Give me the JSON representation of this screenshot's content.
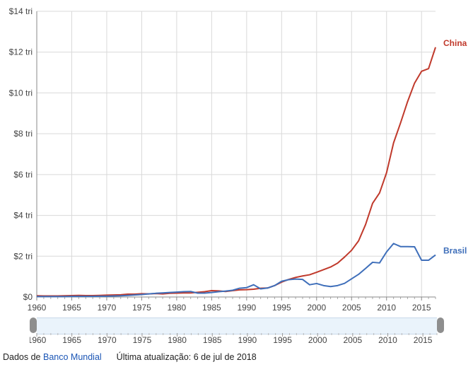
{
  "chart_data": {
    "type": "line",
    "title": "",
    "xlabel": "",
    "ylabel": "",
    "xlim": [
      1960,
      2017
    ],
    "ylim": [
      0,
      14
    ],
    "y_ticks": [
      0,
      2,
      4,
      6,
      8,
      10,
      12,
      14
    ],
    "y_tick_labels": [
      "$0",
      "$2 tri",
      "$4 tri",
      "$6 tri",
      "$8 tri",
      "$10 tri",
      "$12 tri",
      "$14 tri"
    ],
    "x_ticks": [
      1960,
      1965,
      1970,
      1975,
      1980,
      1985,
      1990,
      1995,
      2000,
      2005,
      2010,
      2015
    ],
    "x_tick_labels": [
      "1960",
      "1965",
      "1970",
      "1975",
      "1980",
      "1985",
      "1990",
      "1995",
      "2000",
      "2005",
      "2010",
      "2015"
    ],
    "grid": true,
    "legend": "end-of-line labels",
    "x": [
      1960,
      1961,
      1962,
      1963,
      1964,
      1965,
      1966,
      1967,
      1968,
      1969,
      1970,
      1971,
      1972,
      1973,
      1974,
      1975,
      1976,
      1977,
      1978,
      1979,
      1980,
      1981,
      1982,
      1983,
      1984,
      1985,
      1986,
      1987,
      1988,
      1989,
      1990,
      1991,
      1992,
      1993,
      1994,
      1995,
      1996,
      1997,
      1998,
      1999,
      2000,
      2001,
      2002,
      2003,
      2004,
      2005,
      2006,
      2007,
      2008,
      2009,
      2010,
      2011,
      2012,
      2013,
      2014,
      2015,
      2016,
      2017
    ],
    "series": [
      {
        "name": "China",
        "color": "#c0392b",
        "values": [
          0.06,
          0.05,
          0.05,
          0.05,
          0.06,
          0.07,
          0.08,
          0.07,
          0.07,
          0.08,
          0.09,
          0.1,
          0.11,
          0.14,
          0.14,
          0.16,
          0.15,
          0.17,
          0.15,
          0.18,
          0.19,
          0.2,
          0.2,
          0.23,
          0.26,
          0.31,
          0.3,
          0.27,
          0.31,
          0.35,
          0.36,
          0.38,
          0.43,
          0.44,
          0.56,
          0.73,
          0.86,
          0.96,
          1.03,
          1.09,
          1.21,
          1.34,
          1.47,
          1.66,
          1.96,
          2.29,
          2.75,
          3.55,
          4.59,
          5.1,
          6.09,
          7.55,
          8.53,
          9.57,
          10.48,
          11.06,
          11.19,
          12.24
        ]
      },
      {
        "name": "Brasil",
        "color": "#3f6fba",
        "values": [
          0.02,
          0.02,
          0.02,
          0.02,
          0.02,
          0.03,
          0.03,
          0.03,
          0.03,
          0.04,
          0.04,
          0.05,
          0.06,
          0.08,
          0.1,
          0.12,
          0.15,
          0.18,
          0.2,
          0.22,
          0.24,
          0.26,
          0.27,
          0.19,
          0.19,
          0.22,
          0.26,
          0.29,
          0.33,
          0.43,
          0.46,
          0.6,
          0.4,
          0.44,
          0.56,
          0.77,
          0.85,
          0.88,
          0.86,
          0.6,
          0.66,
          0.56,
          0.51,
          0.56,
          0.67,
          0.89,
          1.11,
          1.4,
          1.7,
          1.67,
          2.21,
          2.62,
          2.47,
          2.47,
          2.46,
          1.8,
          1.8,
          2.06
        ]
      }
    ]
  },
  "range_selector": {
    "x_tick_labels": [
      "1960",
      "1965",
      "1970",
      "1975",
      "1980",
      "1985",
      "1990",
      "1995",
      "2000",
      "2005",
      "2010",
      "2015"
    ]
  },
  "footer": {
    "source_prefix": "Dados de",
    "source_link": "Banco Mundial",
    "updated": "Última atualização: 6 de jul de 2018"
  }
}
